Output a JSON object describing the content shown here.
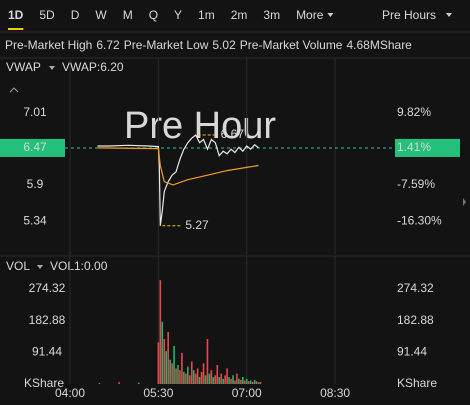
{
  "chart_data": [
    {
      "type": "line",
      "tabs": [
        "1D",
        "5D",
        "D",
        "W",
        "M",
        "Q",
        "Y",
        "1m",
        "2m",
        "3m",
        "More"
      ],
      "active_tab": 0,
      "session": "Pre Hours",
      "info": [
        {
          "label": "Pre-Market High",
          "value": "6.72"
        },
        {
          "label": "Pre-Market Low",
          "value": "5.02"
        },
        {
          "label": "Pre-Market Volume",
          "value": "4.68MShare"
        }
      ],
      "indicator": "VWAP",
      "indicator_value": "VWAP:6.20",
      "watermark": "Pre Hour",
      "xlim": [
        "04:00",
        "09:30"
      ],
      "xticks": [
        "04:00",
        "05:30",
        "07:00",
        "08:30"
      ],
      "ylim": [
        4.82,
        7.44
      ],
      "yticks": [
        7.01,
        6.47,
        5.9,
        5.34
      ],
      "y2lim": [
        4.82,
        7.44
      ],
      "y2ticks": [
        {
          "value": 7.01,
          "label": "9.82%"
        },
        {
          "value": 6.47,
          "label": "1.41%"
        },
        {
          "value": 5.9,
          "label": "-7.59%"
        },
        {
          "value": 5.34,
          "label": "-16.30%"
        }
      ],
      "current": 6.47,
      "grid": true,
      "series": [
        {
          "name": "Price",
          "color": "#e8e8e8",
          "x": [
            "04:28",
            "04:40",
            "05:00",
            "05:20",
            "05:30",
            "05:31",
            "05:32",
            "05:34",
            "05:36",
            "05:40",
            "05:44",
            "05:48",
            "05:52",
            "05:56",
            "06:00",
            "06:04",
            "06:08",
            "06:12",
            "06:16",
            "06:20",
            "06:24",
            "06:28",
            "06:32",
            "06:36",
            "06:40",
            "06:44",
            "06:48",
            "06:52",
            "06:56",
            "07:00",
            "07:04",
            "07:08",
            "07:12"
          ],
          "values": [
            6.5,
            6.5,
            6.51,
            6.5,
            6.49,
            6.2,
            5.27,
            5.5,
            5.8,
            5.95,
            6.05,
            6.1,
            6.3,
            6.45,
            6.55,
            6.62,
            6.67,
            6.55,
            6.6,
            6.45,
            6.6,
            6.55,
            6.35,
            6.42,
            6.38,
            6.45,
            6.4,
            6.48,
            6.42,
            6.5,
            6.45,
            6.52,
            6.47
          ]
        },
        {
          "name": "VWAP",
          "color": "#f0a020",
          "x": [
            "04:28",
            "05:30",
            "05:32",
            "05:36",
            "05:45",
            "06:00",
            "06:20",
            "06:40",
            "07:00",
            "07:12"
          ],
          "values": [
            6.47,
            6.46,
            6.2,
            5.95,
            5.9,
            5.98,
            6.05,
            6.12,
            6.17,
            6.2
          ]
        }
      ],
      "annotations": [
        {
          "text": "6.67",
          "x": "06:08",
          "y": 6.67
        },
        {
          "text": "5.27",
          "x": "05:32",
          "y": 5.27
        }
      ]
    },
    {
      "type": "bar",
      "indicator": "VOL",
      "indicator_value": "VOL1:0.00",
      "xlim": [
        "04:00",
        "09:30"
      ],
      "xticks": [
        "04:00",
        "05:30",
        "07:00",
        "08:30"
      ],
      "ylim": [
        0,
        315
      ],
      "yticks": [
        {
          "value": 274.32,
          "label": "274.32"
        },
        {
          "value": 182.88,
          "label": "182.88"
        },
        {
          "value": 91.44,
          "label": "91.44"
        },
        {
          "value": 0,
          "label": "KShare"
        }
      ],
      "colors": {
        "up": "#1fb56b",
        "down": "#e5484d"
      },
      "x": [
        "04:30",
        "04:50",
        "05:10",
        "05:30",
        "05:32",
        "05:34",
        "05:36",
        "05:38",
        "05:40",
        "05:42",
        "05:44",
        "05:46",
        "05:48",
        "05:50",
        "05:52",
        "05:54",
        "05:56",
        "05:58",
        "06:00",
        "06:02",
        "06:04",
        "06:06",
        "06:08",
        "06:10",
        "06:12",
        "06:14",
        "06:16",
        "06:18",
        "06:20",
        "06:22",
        "06:24",
        "06:26",
        "06:28",
        "06:30",
        "06:32",
        "06:34",
        "06:36",
        "06:38",
        "06:40",
        "06:42",
        "06:44",
        "06:46",
        "06:48",
        "06:50",
        "06:52",
        "06:54",
        "06:56",
        "06:58",
        "07:00",
        "07:02",
        "07:04",
        "07:06",
        "07:08",
        "07:10",
        "07:12",
        "07:14"
      ],
      "values": [
        3,
        5,
        4,
        120,
        300,
        180,
        130,
        95,
        150,
        70,
        60,
        110,
        45,
        55,
        40,
        90,
        35,
        30,
        50,
        25,
        65,
        40,
        30,
        45,
        20,
        35,
        60,
        25,
        130,
        30,
        40,
        20,
        25,
        55,
        20,
        30,
        15,
        25,
        45,
        20,
        15,
        25,
        10,
        30,
        15,
        12,
        20,
        10,
        15,
        8,
        10,
        6,
        12,
        8,
        5,
        6
      ],
      "direction": [
        "up",
        "down",
        "up",
        "down",
        "down",
        "up",
        "down",
        "up",
        "down",
        "up",
        "down",
        "up",
        "down",
        "up",
        "down",
        "down",
        "up",
        "down",
        "up",
        "down",
        "down",
        "up",
        "down",
        "down",
        "up",
        "down",
        "down",
        "up",
        "down",
        "up",
        "down",
        "up",
        "down",
        "down",
        "up",
        "down",
        "up",
        "down",
        "down",
        "up",
        "down",
        "up",
        "down",
        "down",
        "up",
        "down",
        "up",
        "down",
        "up",
        "down",
        "up",
        "down",
        "up",
        "down",
        "up",
        "down"
      ]
    }
  ]
}
